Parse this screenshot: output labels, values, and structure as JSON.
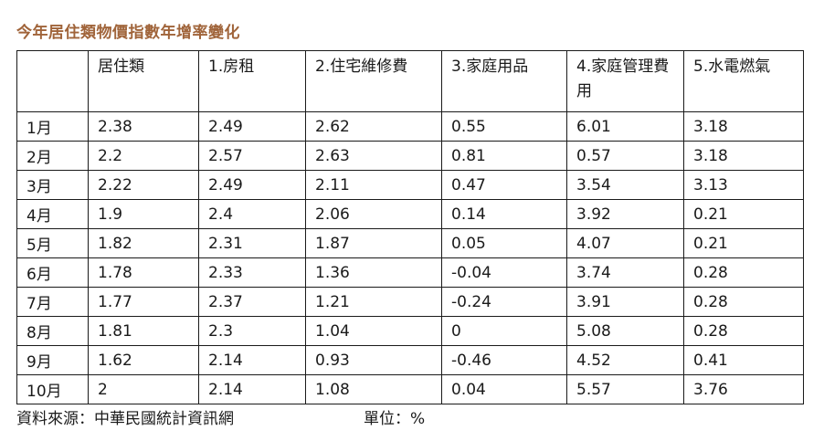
{
  "title": "今年居住類物價指數年增率變化",
  "table": {
    "headers": [
      "",
      "居住類",
      "1.房租",
      "2.住宅維修費",
      "3.家庭用品",
      "4.家庭管理費用",
      "5.水電燃氣"
    ],
    "rows": [
      [
        "1月",
        "2.38",
        "2.49",
        "2.62",
        "0.55",
        "6.01",
        "3.18"
      ],
      [
        "2月",
        "2.2",
        "2.57",
        "2.63",
        "0.81",
        "0.57",
        "3.18"
      ],
      [
        "3月",
        "2.22",
        "2.49",
        "2.11",
        "0.47",
        "3.54",
        "3.13"
      ],
      [
        "4月",
        "1.9",
        "2.4",
        "2.06",
        "0.14",
        "3.92",
        "0.21"
      ],
      [
        "5月",
        "1.82",
        "2.31",
        "1.87",
        "0.05",
        "4.07",
        "0.21"
      ],
      [
        "6月",
        "1.78",
        "2.33",
        "1.36",
        "-0.04",
        "3.74",
        "0.28"
      ],
      [
        "7月",
        "1.77",
        "2.37",
        "1.21",
        "-0.24",
        "3.91",
        "0.28"
      ],
      [
        "8月",
        "1.81",
        "2.3",
        "1.04",
        "0",
        "5.08",
        "0.28"
      ],
      [
        "9月",
        "1.62",
        "2.14",
        "0.93",
        "-0.46",
        "4.52",
        "0.41"
      ],
      [
        "10月",
        "2",
        "2.14",
        "1.08",
        "0.04",
        "5.57",
        "3.76"
      ]
    ]
  },
  "footer": {
    "source": "資料來源：中華民國統計資訊網",
    "unit": "單位：%"
  }
}
